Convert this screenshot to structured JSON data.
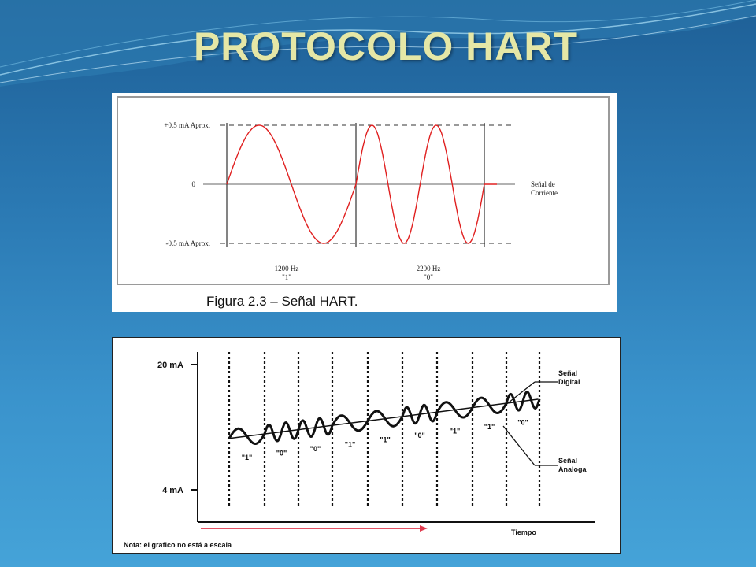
{
  "slide": {
    "title": "PROTOCOLO HART"
  },
  "figure1": {
    "caption": "Figura 2.3 – Señal HART.",
    "y_labels": {
      "top": "+0.5 mA Aprox.",
      "zero": "0",
      "bottom": "-0.5 mA Aprox."
    },
    "signal_label_line1": "Señal de",
    "signal_label_line2": "Corriente",
    "freq1_label": "1200 Hz",
    "bit1_label": "\"1\"",
    "freq2_label": "2200 Hz",
    "bit2_label": "\"0\"",
    "wave_color": "#e02020"
  },
  "figure2": {
    "y_top_label": "20 mA",
    "y_bottom_label": "4 mA",
    "x_label": "Tiempo",
    "note": "Nota: el grafico no está a escala",
    "digital_label_line1": "Señal",
    "digital_label_line2": "Digital",
    "analog_label_line1": "Señal",
    "analog_label_line2": "Analoga",
    "bits": [
      "\"1\"",
      "\"0\"",
      "\"0\"",
      "\"1\"",
      "\"1\"",
      "\"0\"",
      "\"1\"",
      "\"1\"",
      "\"0\""
    ],
    "arrow_color": "#e03a4e"
  }
}
